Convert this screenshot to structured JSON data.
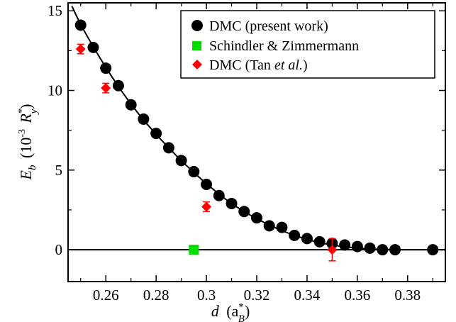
{
  "chart_data": {
    "type": "scatter",
    "title": "",
    "xlabel": {
      "main": "d",
      "paren_open": "(a",
      "sup": "*",
      "sub": "B",
      "paren_close": ")"
    },
    "ylabel": {
      "main": "E",
      "sub": "b",
      "paren_open": "(10",
      "exp": "-3",
      "unit": "R",
      "unit_sup": "*",
      "unit_sub": "y",
      "paren_close": ")"
    },
    "xlim": [
      0.245,
      0.395
    ],
    "ylim": [
      -2,
      15.5
    ],
    "xticks": [
      0.26,
      0.28,
      0.3,
      0.32,
      0.34,
      0.36,
      0.38
    ],
    "xtick_labels": [
      "0.26",
      "0.28",
      "0.3",
      "0.32",
      "0.34",
      "0.36",
      "0.38"
    ],
    "yticks": [
      0,
      5,
      10,
      15
    ],
    "ytick_labels": [
      "0",
      "5",
      "10",
      "15"
    ],
    "grid": false,
    "legend_position": "top-right",
    "series": [
      {
        "name": "DMC (present work)",
        "marker": "circle",
        "color": "#000000",
        "points": [
          [
            0.25,
            14.1
          ],
          [
            0.255,
            12.7
          ],
          [
            0.26,
            11.4
          ],
          [
            0.265,
            10.3
          ],
          [
            0.27,
            9.1
          ],
          [
            0.275,
            8.2
          ],
          [
            0.28,
            7.3
          ],
          [
            0.285,
            6.4
          ],
          [
            0.29,
            5.6
          ],
          [
            0.295,
            4.9
          ],
          [
            0.3,
            4.1
          ],
          [
            0.305,
            3.4
          ],
          [
            0.31,
            2.9
          ],
          [
            0.315,
            2.4
          ],
          [
            0.32,
            2.0
          ],
          [
            0.325,
            1.5
          ],
          [
            0.33,
            1.4
          ],
          [
            0.335,
            0.9
          ],
          [
            0.34,
            0.7
          ],
          [
            0.345,
            0.5
          ],
          [
            0.35,
            0.4
          ],
          [
            0.355,
            0.3
          ],
          [
            0.36,
            0.2
          ],
          [
            0.365,
            0.1
          ],
          [
            0.37,
            0.0
          ],
          [
            0.375,
            0.0
          ],
          [
            0.39,
            0.0
          ]
        ]
      },
      {
        "name": "Schindler & Zimmermann",
        "marker": "square",
        "color": "#00dd00",
        "points": [
          [
            0.295,
            0.0
          ]
        ]
      },
      {
        "name": "DMC (Tan et al.)",
        "name_parts": [
          "DMC (Tan ",
          "et al.",
          ")"
        ],
        "marker": "diamond",
        "color": "#ff0000",
        "points": [
          [
            0.25,
            12.6
          ],
          [
            0.26,
            10.15
          ],
          [
            0.3,
            2.7
          ],
          [
            0.35,
            0.0
          ]
        ],
        "errors": [
          0.3,
          0.3,
          0.3,
          0.7
        ]
      }
    ],
    "fit_curve": {
      "color": "#000000",
      "points": [
        [
          0.2465,
          15.3
        ],
        [
          0.25,
          14.15
        ],
        [
          0.255,
          12.75
        ],
        [
          0.26,
          11.45
        ],
        [
          0.265,
          10.25
        ],
        [
          0.27,
          9.15
        ],
        [
          0.275,
          8.15
        ],
        [
          0.28,
          7.25
        ],
        [
          0.285,
          6.4
        ],
        [
          0.29,
          5.6
        ],
        [
          0.295,
          4.85
        ],
        [
          0.3,
          4.15
        ],
        [
          0.305,
          3.5
        ],
        [
          0.31,
          2.9
        ],
        [
          0.315,
          2.4
        ],
        [
          0.32,
          1.95
        ],
        [
          0.325,
          1.55
        ],
        [
          0.33,
          1.2
        ],
        [
          0.335,
          0.9
        ],
        [
          0.34,
          0.65
        ],
        [
          0.345,
          0.45
        ],
        [
          0.35,
          0.3
        ],
        [
          0.355,
          0.18
        ],
        [
          0.36,
          0.1
        ],
        [
          0.365,
          0.05
        ],
        [
          0.37,
          0.02
        ],
        [
          0.375,
          0.005
        ],
        [
          0.38,
          0.0
        ],
        [
          0.395,
          0.0
        ]
      ]
    },
    "reference_line": {
      "y": 0,
      "color": "#000000"
    }
  }
}
